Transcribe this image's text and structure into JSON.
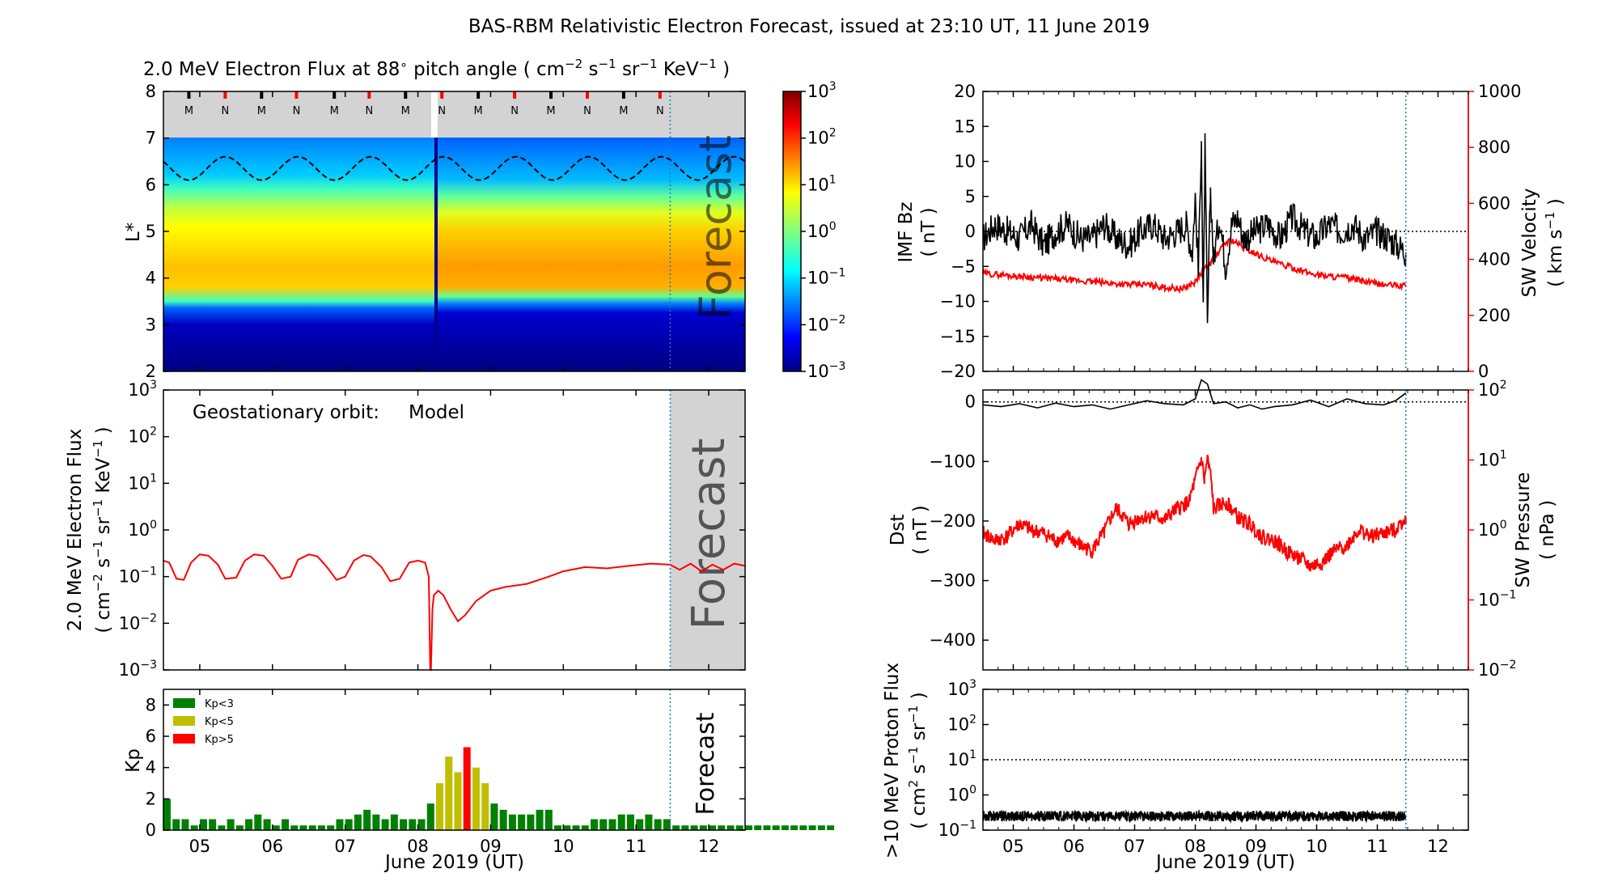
{
  "figure": {
    "title": "BAS-RBM Relativistic Electron Forecast, issued at 23:10 UT, 11 June 2019",
    "forecast_label": "Forecast",
    "x_label": "June 2019 (UT)",
    "x_ticks": [
      "05",
      "06",
      "07",
      "08",
      "09",
      "10",
      "11",
      "12"
    ]
  },
  "colors": {
    "black": "#000000",
    "red": "#ff0000",
    "forecast_line": "#1f77b4",
    "forecast_shade": "#d3d3d3",
    "kp_low": "#008000",
    "kp_mid": "#bfbf00",
    "kp_high": "#ff0000"
  },
  "chart_data": [
    {
      "id": "flux_map",
      "type": "heatmap",
      "title": "2.0 MeV Electron Flux at 88° pitch angle ( cm-2 s-1 sr-1 KeV-1 )",
      "title_parts": {
        "prefix": "2.0 MeV Electron Flux at 88",
        "deg": "∘",
        "units_open": " pitch angle ( cm",
        "e1": "−2",
        "s": " s",
        "e2": "−1",
        "sr": " sr",
        "e3": "−1",
        "kev": " KeV",
        "e4": "−1",
        "close": " )"
      },
      "ylabel": "L*",
      "ylim": [
        2,
        8
      ],
      "y_ticks": [
        "2",
        "3",
        "4",
        "5",
        "6",
        "7",
        "8"
      ],
      "xlim_day": [
        4.5,
        12.5
      ],
      "forecast_start_day": 11.47,
      "colorbar": {
        "scale": "log",
        "ticks": [
          {
            "base": "10",
            "exp": "3"
          },
          {
            "base": "10",
            "exp": "2"
          },
          {
            "base": "10",
            "exp": "1"
          },
          {
            "base": "10",
            "exp": "0"
          },
          {
            "base": "10",
            "exp": "−1"
          },
          {
            "base": "10",
            "exp": "−2"
          },
          {
            "base": "10",
            "exp": "−3"
          }
        ]
      },
      "mlt_markers": [
        {
          "label": "M",
          "day": 4.85,
          "color": "#000000"
        },
        {
          "label": "N",
          "day": 5.35,
          "color": "#ff0000"
        },
        {
          "label": "M",
          "day": 5.85,
          "color": "#000000"
        },
        {
          "label": "N",
          "day": 6.33,
          "color": "#ff0000"
        },
        {
          "label": "M",
          "day": 6.85,
          "color": "#000000"
        },
        {
          "label": "N",
          "day": 7.33,
          "color": "#ff0000"
        },
        {
          "label": "M",
          "day": 7.83,
          "color": "#000000"
        },
        {
          "label": "N",
          "day": 8.33,
          "color": "#ff0000"
        },
        {
          "label": "M",
          "day": 8.83,
          "color": "#000000"
        },
        {
          "label": "N",
          "day": 9.33,
          "color": "#ff0000"
        },
        {
          "label": "M",
          "day": 9.83,
          "color": "#000000"
        },
        {
          "label": "N",
          "day": 10.33,
          "color": "#ff0000"
        },
        {
          "label": "M",
          "day": 10.83,
          "color": "#000000"
        },
        {
          "label": "N",
          "day": 11.33,
          "color": "#ff0000"
        }
      ],
      "geo_orbit_L": {
        "mean": 6.35,
        "amplitude": 0.25,
        "min_day": 4.85
      }
    },
    {
      "id": "geo_flux",
      "type": "line",
      "annotation": "Geostationary orbit:",
      "annotation_series": "Model",
      "ylabel_parts": {
        "line1": "2.0 MeV Electron Flux",
        "open": "( cm",
        "e1": "−2",
        "s": " s",
        "e2": "−1",
        "sr": " sr",
        "e3": "−1",
        "kev": " KeV",
        "e4": "−1",
        "close": " )"
      },
      "yscale": "log",
      "ylim": [
        0.001,
        1000
      ],
      "y_ticks": [
        {
          "base": "10",
          "exp": "3"
        },
        {
          "base": "10",
          "exp": "2"
        },
        {
          "base": "10",
          "exp": "1"
        },
        {
          "base": "10",
          "exp": "0"
        },
        {
          "base": "10",
          "exp": "−1"
        },
        {
          "base": "10",
          "exp": "−2"
        },
        {
          "base": "10",
          "exp": "−3"
        }
      ],
      "series": [
        {
          "name": "Model",
          "x": [
            4.5,
            4.58,
            4.68,
            4.78,
            4.88,
            5.0,
            5.12,
            5.25,
            5.35,
            5.5,
            5.62,
            5.75,
            5.88,
            6.0,
            6.12,
            6.25,
            6.35,
            6.5,
            6.62,
            6.75,
            6.88,
            7.0,
            7.12,
            7.25,
            7.35,
            7.5,
            7.62,
            7.75,
            7.88,
            8.0,
            8.1,
            8.15,
            8.17,
            8.18,
            8.2,
            8.22,
            8.28,
            8.35,
            8.45,
            8.55,
            8.65,
            8.8,
            9.0,
            9.2,
            9.5,
            9.8,
            10.0,
            10.3,
            10.6,
            10.9,
            11.2,
            11.47,
            11.6,
            11.75,
            11.9,
            12.05,
            12.2,
            12.35,
            12.5
          ],
          "y": [
            0.22,
            0.2,
            0.09,
            0.085,
            0.2,
            0.3,
            0.28,
            0.18,
            0.09,
            0.095,
            0.22,
            0.3,
            0.28,
            0.17,
            0.09,
            0.1,
            0.23,
            0.3,
            0.27,
            0.16,
            0.085,
            0.1,
            0.22,
            0.29,
            0.27,
            0.16,
            0.08,
            0.09,
            0.2,
            0.22,
            0.2,
            0.1,
            0.001,
            0.001,
            0.02,
            0.04,
            0.05,
            0.04,
            0.02,
            0.011,
            0.015,
            0.03,
            0.05,
            0.06,
            0.07,
            0.1,
            0.13,
            0.16,
            0.15,
            0.17,
            0.19,
            0.18,
            0.14,
            0.19,
            0.13,
            0.18,
            0.14,
            0.19,
            0.17
          ]
        }
      ]
    },
    {
      "id": "kp",
      "type": "bar",
      "ylabel": "Kp",
      "ylim": [
        0,
        9
      ],
      "y_ticks": [
        "0",
        "2",
        "4",
        "6",
        "8"
      ],
      "legend": [
        "Kp<3",
        "Kp<5",
        "Kp>5"
      ],
      "bar_width_day": 0.1,
      "x_start_day": 4.5,
      "x_step_day": 0.125,
      "values": [
        2.0,
        0.7,
        0.7,
        0.3,
        0.7,
        0.7,
        0.3,
        0.7,
        0.3,
        0.7,
        1.0,
        0.7,
        0.3,
        0.7,
        0.3,
        0.3,
        0.3,
        0.3,
        0.3,
        0.7,
        0.7,
        1.0,
        1.3,
        1.0,
        0.7,
        1.0,
        0.7,
        0.7,
        0.7,
        1.7,
        3.0,
        4.7,
        3.7,
        5.3,
        4.0,
        3.0,
        1.7,
        1.3,
        1.0,
        1.0,
        1.0,
        1.3,
        1.3,
        0.3,
        0.3,
        0.3,
        0.3,
        0.7,
        0.7,
        0.7,
        1.0,
        1.0,
        0.7,
        1.0,
        0.7,
        0.7,
        0.3,
        0.3,
        0.3,
        0.3,
        0.3,
        0.3,
        0.3,
        0.3,
        0.3,
        0.3,
        0.3,
        0.3,
        0.3,
        0.3,
        0.3,
        0.3,
        0.3,
        0.3
      ]
    },
    {
      "id": "imf_sw",
      "type": "line",
      "ylabel_left_parts": {
        "line1": "IMF Bz",
        "line2": "( nT )"
      },
      "ylabel_right_parts": {
        "line1": "SW Velocity",
        "open": "( km s",
        "exp": "−1",
        "close": " )"
      },
      "ylim_left": [
        -20,
        20
      ],
      "ylim_right": [
        0,
        1000
      ],
      "y_ticks_left": [
        "20",
        "15",
        "10",
        "5",
        "0",
        "−5",
        "−10",
        "−15",
        "−20"
      ],
      "y_ticks_right": [
        "1000",
        "800",
        "600",
        "400",
        "200",
        "0"
      ],
      "series": [
        {
          "name": "IMF Bz",
          "axis": "left",
          "x": [
            4.5,
            4.7,
            4.9,
            5.1,
            5.3,
            5.5,
            5.7,
            5.9,
            6.1,
            6.3,
            6.5,
            6.7,
            6.9,
            7.1,
            7.3,
            7.5,
            7.7,
            7.85,
            7.95,
            8.0,
            8.05,
            8.1,
            8.13,
            8.16,
            8.2,
            8.25,
            8.3,
            8.4,
            8.5,
            8.6,
            8.7,
            8.8,
            9.0,
            9.2,
            9.4,
            9.6,
            9.8,
            10.0,
            10.2,
            10.4,
            10.6,
            10.8,
            11.0,
            11.2,
            11.47
          ],
          "y": [
            -1,
            1,
            0,
            -1,
            1,
            -2,
            0,
            1,
            -1,
            -1,
            1,
            -1,
            -2,
            0,
            1,
            -1,
            0,
            1,
            -3,
            5,
            -6,
            14,
            -12,
            12,
            -14,
            6,
            -4,
            2,
            -5,
            1,
            2,
            -1,
            0,
            1,
            -1,
            2,
            0,
            -1,
            1,
            0,
            1,
            -1,
            0,
            -1,
            -3
          ]
        },
        {
          "name": "SW Velocity",
          "axis": "right",
          "x": [
            4.5,
            4.8,
            5.1,
            5.4,
            5.7,
            6.0,
            6.3,
            6.6,
            6.9,
            7.2,
            7.5,
            7.8,
            8.0,
            8.1,
            8.3,
            8.5,
            8.6,
            8.8,
            9.0,
            9.3,
            9.6,
            9.9,
            10.2,
            10.5,
            10.8,
            11.1,
            11.47
          ],
          "y": [
            350,
            345,
            340,
            335,
            330,
            325,
            320,
            315,
            310,
            310,
            300,
            295,
            320,
            350,
            400,
            460,
            470,
            440,
            420,
            390,
            370,
            350,
            340,
            335,
            320,
            310,
            305
          ]
        }
      ]
    },
    {
      "id": "dst_pressure",
      "type": "line",
      "ylabel_left_parts": {
        "line1": "Dst",
        "line2": "( nT )"
      },
      "ylabel_right_parts": {
        "line1": "SW Pressure",
        "line2": "( nPa )"
      },
      "ylim_left": [
        -450,
        20
      ],
      "y_ticks_left": [
        "0",
        "−100",
        "−200",
        "−300",
        "−400"
      ],
      "yscale_right": "log",
      "ylim_right": [
        0.01,
        100
      ],
      "y_ticks_right": [
        {
          "base": "10",
          "exp": "2"
        },
        {
          "base": "10",
          "exp": "1"
        },
        {
          "base": "10",
          "exp": "0"
        },
        {
          "base": "10",
          "exp": "−1"
        },
        {
          "base": "10",
          "exp": "−2"
        }
      ],
      "series": [
        {
          "name": "Dst",
          "axis": "left",
          "x": [
            4.5,
            4.8,
            5.1,
            5.4,
            5.7,
            6.0,
            6.3,
            6.6,
            6.9,
            7.2,
            7.5,
            7.8,
            8.0,
            8.1,
            8.2,
            8.3,
            8.5,
            8.7,
            8.9,
            9.1,
            9.3,
            9.6,
            9.9,
            10.2,
            10.5,
            10.8,
            11.1,
            11.3,
            11.47
          ],
          "y": [
            -5,
            -8,
            -3,
            -10,
            -2,
            -8,
            -5,
            -12,
            -5,
            2,
            -3,
            -5,
            5,
            37,
            30,
            -3,
            0,
            -10,
            -5,
            -12,
            -8,
            -5,
            3,
            -8,
            5,
            -3,
            -5,
            2,
            15
          ]
        },
        {
          "name": "SW Pressure",
          "axis": "right",
          "x": [
            4.5,
            4.7,
            4.9,
            5.1,
            5.3,
            5.5,
            5.7,
            5.9,
            6.1,
            6.3,
            6.5,
            6.7,
            6.9,
            7.1,
            7.3,
            7.5,
            7.7,
            7.9,
            8.0,
            8.1,
            8.15,
            8.2,
            8.3,
            8.5,
            8.7,
            8.9,
            9.1,
            9.3,
            9.5,
            9.7,
            9.9,
            10.1,
            10.3,
            10.5,
            10.7,
            10.9,
            11.1,
            11.3,
            11.47
          ],
          "y": [
            0.9,
            0.7,
            0.8,
            1.2,
            1.0,
            0.9,
            0.7,
            0.8,
            0.6,
            0.5,
            0.9,
            2.0,
            1.2,
            1.5,
            1.6,
            1.4,
            2.0,
            2.5,
            5.0,
            10.0,
            5.0,
            10.0,
            2.0,
            2.5,
            1.5,
            1.2,
            0.8,
            0.7,
            0.5,
            0.4,
            0.3,
            0.35,
            0.5,
            0.6,
            1.0,
            0.8,
            0.9,
            1.0,
            1.5
          ]
        }
      ]
    },
    {
      "id": "proton_flux",
      "type": "line",
      "ylabel_parts": {
        "line1": ">10 MeV Proton Flux",
        "open": "( cm",
        "e1": "2",
        "s": " s",
        "e2": "−1",
        "sr": " sr",
        "e3": "−1",
        "close": " )"
      },
      "yscale": "log",
      "ylim": [
        0.1,
        1000
      ],
      "y_ticks": [
        {
          "base": "10",
          "exp": "3"
        },
        {
          "base": "10",
          "exp": "2"
        },
        {
          "base": "10",
          "exp": "1"
        },
        {
          "base": "10",
          "exp": "0"
        },
        {
          "base": "10",
          "exp": "−1"
        }
      ],
      "threshold": 10,
      "series": [
        {
          "name": ">10 MeV Proton Flux",
          "x": [
            4.5,
            11.47
          ],
          "y": [
            0.25,
            0.25
          ]
        }
      ]
    }
  ]
}
